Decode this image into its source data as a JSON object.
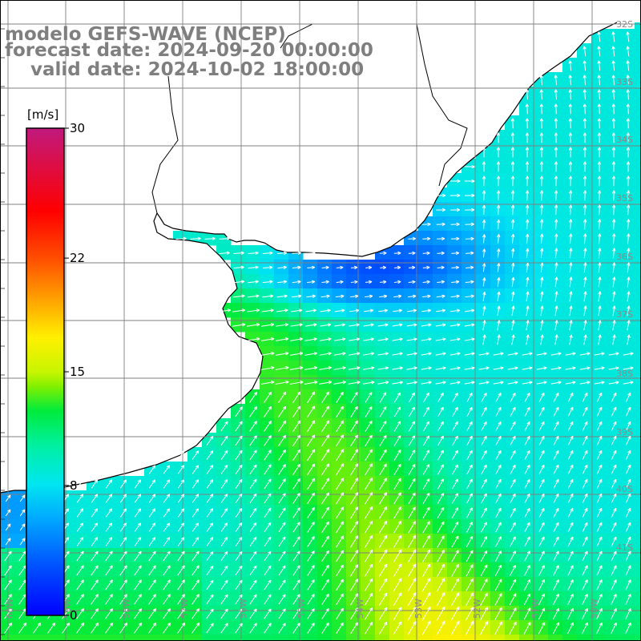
{
  "header": {
    "line1": "modelo GEFS-WAVE (NCEP)",
    "line2": "forecast date: 2024-09-20 00:00:00",
    "line3": "    valid date: 2024-10-02 18:00:00"
  },
  "colorbar": {
    "unit": "[m/s]",
    "ticks": [
      {
        "value": 30,
        "label": "30"
      },
      {
        "value": 22,
        "label": "22"
      },
      {
        "value": 15,
        "label": "15"
      },
      {
        "value": 8,
        "label": "8"
      },
      {
        "value": 0,
        "label": "0"
      }
    ],
    "min": 0,
    "max": 30,
    "colors": [
      "#0000ff",
      "#0077ff",
      "#00ccff",
      "#00ff80",
      "#33ff00",
      "#ffff00",
      "#ff8000",
      "#ff0000",
      "#ff0066",
      "#c0197e"
    ]
  },
  "map": {
    "latitude_labels": [
      "32S",
      "33S",
      "34S",
      "35S",
      "36S",
      "37S",
      "38S",
      "39S",
      "40S",
      "41S"
    ],
    "longitude_labels": [
      "60W",
      "59W",
      "58W",
      "57W",
      "56W",
      "55W",
      "54W",
      "53W",
      "52W",
      "51W",
      "50W"
    ],
    "land_color": "#ffffff",
    "grid_color": "#808080",
    "arrow_color": "#ffffff"
  }
}
